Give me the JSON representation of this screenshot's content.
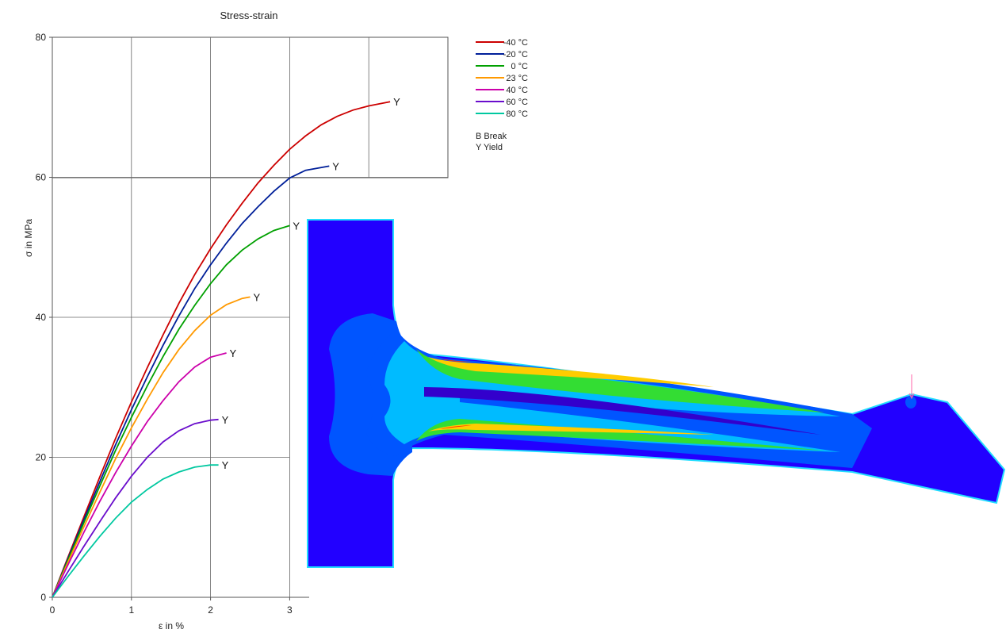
{
  "chart_data": {
    "type": "line",
    "title": "Stress-strain",
    "xlabel": "ε in %",
    "ylabel": "σ in MPa",
    "xlim": [
      0,
      5
    ],
    "ylim": [
      0,
      80
    ],
    "x_ticks": [
      "0",
      "1",
      "2",
      "3"
    ],
    "y_ticks": [
      "0",
      "20",
      "40",
      "60",
      "80"
    ],
    "grid": true,
    "legend_position": "top-right",
    "legend_notes": [
      "B Break",
      "Y Yield"
    ],
    "end_marker": "Y",
    "series": [
      {
        "name": "-40 °C",
        "color": "#cc0000",
        "points": [
          [
            0,
            0
          ],
          [
            0.2,
            5.8
          ],
          [
            0.4,
            11.5
          ],
          [
            0.6,
            17.2
          ],
          [
            0.8,
            22.7
          ],
          [
            1.0,
            27.9
          ],
          [
            1.2,
            32.8
          ],
          [
            1.4,
            37.5
          ],
          [
            1.6,
            42
          ],
          [
            1.8,
            46.1
          ],
          [
            2.0,
            49.8
          ],
          [
            2.2,
            53.2
          ],
          [
            2.4,
            56.3
          ],
          [
            2.6,
            59.2
          ],
          [
            2.8,
            61.7
          ],
          [
            3.0,
            64
          ],
          [
            3.2,
            65.9
          ],
          [
            3.4,
            67.5
          ],
          [
            3.6,
            68.7
          ],
          [
            3.8,
            69.6
          ],
          [
            4.0,
            70.2
          ],
          [
            4.27,
            70.8
          ]
        ]
      },
      {
        "name": "-20 °C",
        "color": "#001f99",
        "points": [
          [
            0,
            0
          ],
          [
            0.2,
            5.6
          ],
          [
            0.4,
            11.1
          ],
          [
            0.6,
            16.5
          ],
          [
            0.8,
            21.8
          ],
          [
            1.0,
            26.8
          ],
          [
            1.2,
            31.5
          ],
          [
            1.4,
            36
          ],
          [
            1.6,
            40.2
          ],
          [
            1.8,
            44.1
          ],
          [
            2.0,
            47.5
          ],
          [
            2.2,
            50.6
          ],
          [
            2.4,
            53.4
          ],
          [
            2.6,
            55.8
          ],
          [
            2.8,
            58
          ],
          [
            3.0,
            59.9
          ],
          [
            3.2,
            61
          ],
          [
            3.5,
            61.6
          ]
        ]
      },
      {
        "name": "0 °C",
        "color": "#00a000",
        "points": [
          [
            0,
            0
          ],
          [
            0.2,
            5.4
          ],
          [
            0.4,
            10.7
          ],
          [
            0.6,
            15.9
          ],
          [
            0.8,
            21
          ],
          [
            1.0,
            25.7
          ],
          [
            1.2,
            30.2
          ],
          [
            1.4,
            34.4
          ],
          [
            1.6,
            38.3
          ],
          [
            1.8,
            41.7
          ],
          [
            2.0,
            44.8
          ],
          [
            2.2,
            47.5
          ],
          [
            2.4,
            49.6
          ],
          [
            2.6,
            51.2
          ],
          [
            2.8,
            52.4
          ],
          [
            3.0,
            53.1
          ]
        ]
      },
      {
        "name": "23 °C",
        "color": "#ff9900",
        "points": [
          [
            0,
            0
          ],
          [
            0.2,
            5.1
          ],
          [
            0.4,
            10.1
          ],
          [
            0.6,
            15
          ],
          [
            0.8,
            19.8
          ],
          [
            1.0,
            24.2
          ],
          [
            1.2,
            28.3
          ],
          [
            1.4,
            32.1
          ],
          [
            1.6,
            35.4
          ],
          [
            1.8,
            38.1
          ],
          [
            2.0,
            40.3
          ],
          [
            2.2,
            41.8
          ],
          [
            2.4,
            42.7
          ],
          [
            2.5,
            42.9
          ]
        ]
      },
      {
        "name": "40 °C",
        "color": "#cc00aa",
        "points": [
          [
            0,
            0
          ],
          [
            0.2,
            4.7
          ],
          [
            0.4,
            9.3
          ],
          [
            0.6,
            13.7
          ],
          [
            0.8,
            17.8
          ],
          [
            1.0,
            21.6
          ],
          [
            1.2,
            25.1
          ],
          [
            1.4,
            28.1
          ],
          [
            1.6,
            30.8
          ],
          [
            1.8,
            32.9
          ],
          [
            2.0,
            34.3
          ],
          [
            2.2,
            34.9
          ]
        ]
      },
      {
        "name": "60 °C",
        "color": "#6a0dcc",
        "points": [
          [
            0,
            0
          ],
          [
            0.2,
            3.7
          ],
          [
            0.4,
            7.3
          ],
          [
            0.6,
            10.8
          ],
          [
            0.8,
            14.2
          ],
          [
            1.0,
            17.3
          ],
          [
            1.2,
            20
          ],
          [
            1.4,
            22.2
          ],
          [
            1.6,
            23.8
          ],
          [
            1.8,
            24.8
          ],
          [
            2.0,
            25.3
          ],
          [
            2.1,
            25.4
          ]
        ]
      },
      {
        "name": "80 °C",
        "color": "#00c8a0",
        "points": [
          [
            0,
            0
          ],
          [
            0.2,
            3
          ],
          [
            0.4,
            5.9
          ],
          [
            0.6,
            8.7
          ],
          [
            0.8,
            11.3
          ],
          [
            1.0,
            13.6
          ],
          [
            1.2,
            15.4
          ],
          [
            1.4,
            16.9
          ],
          [
            1.6,
            17.9
          ],
          [
            1.8,
            18.6
          ],
          [
            2.0,
            18.9
          ],
          [
            2.1,
            18.9
          ]
        ]
      }
    ]
  },
  "overlay": {
    "icon": "fea-stress-contour-cantilever",
    "colors": {
      "background": "#2200ff",
      "edge": "#22ddff",
      "low": "#0055ff",
      "mid": "#00bbff",
      "high": "#33dd33",
      "peak": "#ffcc00",
      "max": "#ff3300",
      "load_arrow": "#ff66aa"
    }
  }
}
